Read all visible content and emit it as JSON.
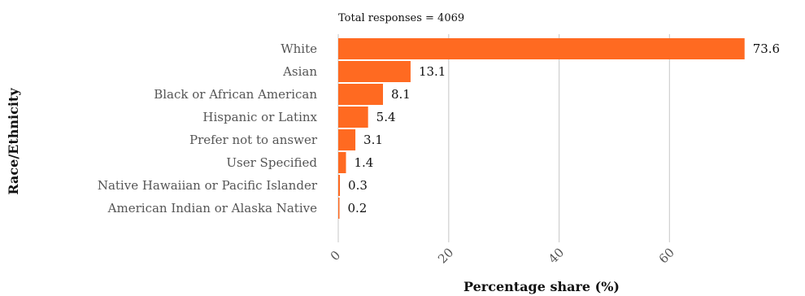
{
  "chart_data": {
    "type": "bar",
    "orientation": "horizontal",
    "annotation": "Total responses =  4069",
    "xlabel": "Percentage share (%)",
    "ylabel": "Race/Ethnicity",
    "categories": [
      "White",
      "Asian",
      "Black or African American",
      "Hispanic or Latinx",
      "Prefer not to answer",
      "User Specified",
      "Native Hawaiian or Pacific Islander",
      "American Indian or Alaska Native"
    ],
    "values": [
      73.6,
      13.1,
      8.1,
      5.4,
      3.1,
      1.4,
      0.3,
      0.2
    ],
    "value_labels": [
      "73.6",
      "13.1",
      "8.1",
      "5.4",
      "3.1",
      "1.4",
      "0.3",
      "0.2"
    ],
    "xticks": [
      0,
      20,
      40,
      60
    ],
    "xtick_labels": [
      "0",
      "20",
      "40",
      "60"
    ],
    "xlim": [
      0,
      76
    ],
    "grid": "vertical",
    "bar_color": "#ff6a21",
    "grid_color": "#d0d0d0"
  }
}
